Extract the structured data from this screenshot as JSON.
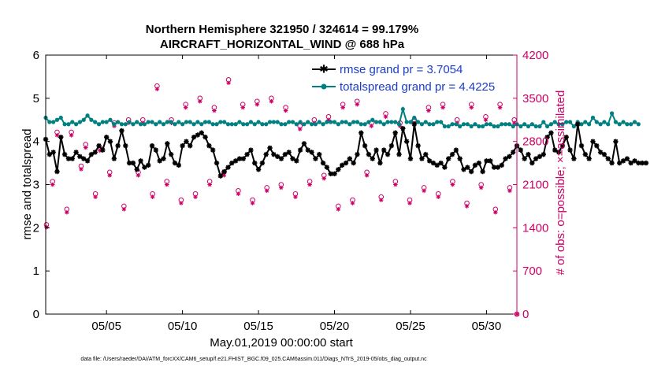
{
  "chart_data": {
    "type": "line",
    "title_line1": "Northern Hemisphere 321950 / 324614 = 99.179%",
    "title_line2": "AIRCRAFT_HORIZONTAL_WIND @ 688 hPa",
    "xlabel": "May.01,2019 00:00:00 start",
    "ylabel_left": "rmse and totalspread",
    "ylabel_right": "# of obs: o=possible; ×=assimilated",
    "footer": "data file: /Users/raeder/DAI/ATM_forcXX/CAM6_setup/f.e21.FHIST_BGC.f09_025.CAM6assim.011/Diags_NTrS_2019-05/obs_diag_output.nc",
    "xlim": [
      1.0,
      32.0
    ],
    "ylim_left": [
      0,
      6
    ],
    "ylim_right": [
      0,
      4200
    ],
    "x_ticks": [
      {
        "value": 5,
        "label": "05/05"
      },
      {
        "value": 10,
        "label": "05/10"
      },
      {
        "value": 15,
        "label": "05/15"
      },
      {
        "value": 20,
        "label": "05/20"
      },
      {
        "value": 25,
        "label": "05/25"
      },
      {
        "value": 30,
        "label": "05/30"
      }
    ],
    "y_ticks_left": [
      "0",
      "1",
      "2",
      "3",
      "4",
      "5",
      "6"
    ],
    "y_ticks_right": [
      "0",
      "700",
      "1400",
      "2100",
      "2800",
      "3500",
      "4200"
    ],
    "legend": [
      {
        "label": "rmse grand pr = 3.7054",
        "color": "#000000"
      },
      {
        "label": "totalspread grand pr = 4.4225",
        "color": "#008080"
      }
    ],
    "colors": {
      "rmse": "#000000",
      "spread": "#008080",
      "obs": "#cc0066"
    },
    "x_start": 1.0,
    "x_step": 0.25,
    "series": [
      {
        "name": "rmse",
        "values": [
          4.05,
          3.7,
          3.75,
          3.3,
          4.1,
          3.7,
          3.6,
          3.6,
          3.75,
          3.65,
          3.6,
          3.55,
          3.7,
          3.75,
          3.9,
          3.8,
          4.1,
          4.0,
          3.6,
          3.9,
          4.25,
          3.9,
          3.5,
          3.5,
          3.35,
          3.55,
          3.4,
          3.45,
          3.9,
          3.8,
          3.55,
          3.6,
          3.95,
          3.7,
          3.5,
          3.45,
          3.9,
          4.0,
          3.9,
          4.1,
          4.15,
          4.2,
          4.1,
          3.9,
          3.8,
          3.5,
          3.2,
          3.3,
          3.4,
          3.5,
          3.55,
          3.6,
          3.6,
          3.7,
          3.8,
          3.5,
          3.35,
          3.5,
          3.7,
          3.85,
          3.7,
          3.65,
          3.6,
          3.7,
          3.75,
          3.6,
          3.55,
          3.8,
          3.95,
          3.8,
          3.75,
          3.6,
          3.7,
          3.5,
          3.4,
          3.25,
          3.25,
          3.35,
          3.45,
          3.5,
          3.6,
          3.5,
          3.7,
          4.2,
          3.9,
          3.7,
          3.6,
          3.8,
          3.5,
          3.8,
          3.7,
          3.9,
          4.2,
          3.7,
          4.3,
          4.0,
          3.6,
          4.4,
          3.9,
          3.6,
          3.7,
          3.55,
          3.5,
          3.45,
          3.5,
          3.4,
          3.6,
          3.7,
          3.8,
          3.6,
          3.35,
          3.4,
          3.3,
          3.45,
          3.5,
          3.3,
          3.55,
          3.55,
          3.4,
          3.4,
          3.45,
          3.6,
          3.65,
          3.75,
          3.9,
          3.8,
          3.6,
          3.7,
          3.5,
          3.6,
          3.65,
          3.7,
          4.1,
          4.2,
          3.8,
          3.75,
          3.9,
          4.1,
          3.8,
          3.6,
          4.4,
          3.9,
          3.7,
          3.6,
          4.0,
          3.9,
          3.75,
          3.7,
          3.6,
          3.5,
          4.0,
          3.5,
          3.55,
          3.6,
          3.5,
          3.55,
          3.5,
          3.5,
          3.5
        ]
      },
      {
        "name": "totalspread",
        "values": [
          4.55,
          4.45,
          4.45,
          4.5,
          4.55,
          4.4,
          4.4,
          4.45,
          4.4,
          4.45,
          4.5,
          4.6,
          4.5,
          4.45,
          4.4,
          4.45,
          4.45,
          4.5,
          4.4,
          4.45,
          4.4,
          4.4,
          4.45,
          4.4,
          4.45,
          4.4,
          4.4,
          4.45,
          4.45,
          4.4,
          4.45,
          4.4,
          4.45,
          4.45,
          4.4,
          4.45,
          4.4,
          4.45,
          4.45,
          4.4,
          4.45,
          4.4,
          4.45,
          4.45,
          4.4,
          4.4,
          4.45,
          4.45,
          4.4,
          4.4,
          4.4,
          4.45,
          4.4,
          4.4,
          4.45,
          4.4,
          4.45,
          4.4,
          4.4,
          4.45,
          4.45,
          4.45,
          4.4,
          4.4,
          4.45,
          4.45,
          4.4,
          4.45,
          4.4,
          4.45,
          4.4,
          4.4,
          4.45,
          4.4,
          4.45,
          4.45,
          4.45,
          4.4,
          4.45,
          4.45,
          4.4,
          4.45,
          4.45,
          4.4,
          4.4,
          4.45,
          4.5,
          4.45,
          4.45,
          4.4,
          4.45,
          4.45,
          4.45,
          4.4,
          4.75,
          4.45,
          4.45,
          4.55,
          4.45,
          4.4,
          4.45,
          4.4,
          4.4,
          4.45,
          4.45,
          4.35,
          4.35,
          4.4,
          4.4,
          4.35,
          4.4,
          4.4,
          4.35,
          4.4,
          4.35,
          4.35,
          4.4,
          4.4,
          4.35,
          4.35,
          4.4,
          4.4,
          4.4,
          4.35,
          4.4,
          4.35,
          4.4,
          4.35,
          4.4,
          4.35,
          4.35,
          4.45,
          4.35,
          4.4,
          4.45,
          4.4,
          4.4,
          4.45,
          4.45,
          4.35,
          4.45,
          4.4,
          4.45,
          4.4,
          4.55,
          4.45,
          4.4,
          4.45,
          4.4,
          4.65,
          4.45,
          4.4,
          4.45,
          4.4,
          4.4,
          4.45,
          4.4
        ]
      }
    ],
    "obs": {
      "upper_possible": [
        2950,
        2950,
        2750,
        2700,
        3100,
        3150,
        3150,
        3700,
        3150,
        3400,
        3500,
        3350,
        3800,
        3400,
        3450,
        3500,
        3350,
        3050,
        3150,
        3200,
        3400,
        3450,
        3100,
        3250,
        3100,
        3150,
        3350,
        3400,
        3150,
        3400,
        3200,
        3400,
        3150
      ],
      "upper_assimilated": [
        2900,
        2900,
        2700,
        2650,
        3050,
        3100,
        3100,
        3650,
        3100,
        3350,
        3450,
        3300,
        3750,
        3350,
        3400,
        3450,
        3300,
        3000,
        3100,
        3150,
        3350,
        3400,
        3050,
        3200,
        3050,
        3100,
        3300,
        3350,
        3100,
        3350,
        3150,
        3350,
        3100
      ],
      "lower_possible": [
        2150,
        1700,
        2400,
        1950,
        2300,
        1750,
        2300,
        1950,
        2150,
        1850,
        1950,
        2150,
        2300,
        2000,
        1850,
        2050,
        2100,
        1950,
        2150,
        2250,
        1750,
        1850,
        2300,
        1900,
        2150,
        1850,
        2050,
        1950,
        2150,
        1800,
        2100,
        1700,
        2050
      ],
      "lower_assimilated": [
        2100,
        1650,
        2350,
        1900,
        2250,
        1700,
        2250,
        1900,
        2100,
        1800,
        1900,
        2100,
        2250,
        1950,
        1800,
        2000,
        2050,
        1900,
        2100,
        2200,
        1700,
        1800,
        2250,
        1850,
        2100,
        1800,
        2000,
        1900,
        2100,
        1750,
        2050,
        1650,
        2000
      ],
      "first_possible": 1450,
      "last_possible": 0
    }
  }
}
